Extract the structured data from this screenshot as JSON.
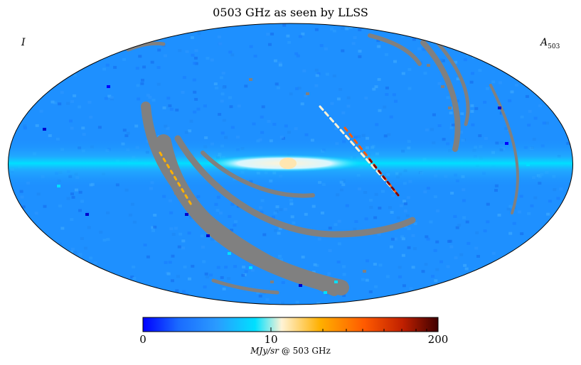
{
  "title": "0503 GHz as seen by LLSS",
  "corner_left": "I",
  "corner_right_main": "A",
  "corner_right_sub": "503",
  "colorbar": {
    "min_label": "0",
    "mid_label": "10",
    "max_label": "200",
    "unit_italic": "MJy/sr",
    "unit_rest": " @ 503 GHz",
    "colors": [
      "#0000ff",
      "#1a6bff",
      "#2a9bff",
      "#00e0ff",
      "#fff3d6",
      "#ffb000",
      "#ff5a00",
      "#c02000",
      "#400000"
    ]
  },
  "map_colors": {
    "background": "#1e90ff",
    "band": "#00d0ff",
    "core": "#fff3d6",
    "mask": "#808080",
    "hot": "#ff5a00",
    "dark": "#800000"
  }
}
